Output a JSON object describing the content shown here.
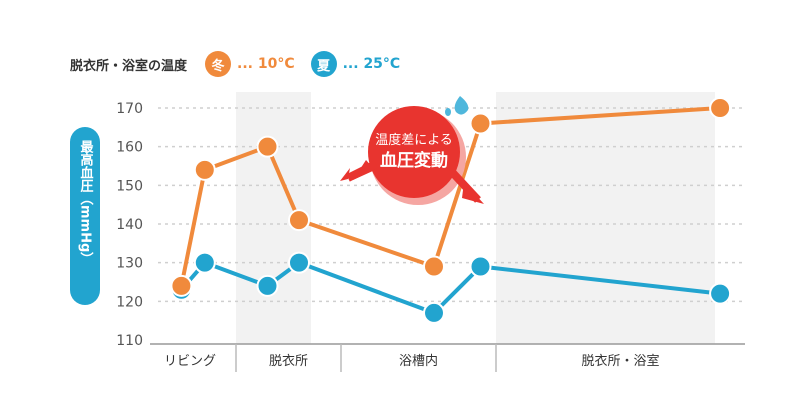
{
  "legend": {
    "title": "脱衣所・浴室の温度",
    "winter": {
      "badge": "冬",
      "label": "... 10°C",
      "color": "#f08a3c"
    },
    "summer": {
      "badge": "夏",
      "label": "... 25°C",
      "color": "#22a4cf"
    }
  },
  "callout": {
    "line1": "温度差による",
    "line2": "血圧変動",
    "color": "#e8342f"
  },
  "chart_data": {
    "type": "line",
    "ylabel": "最高血圧（mmHg）",
    "ylim": [
      110,
      170
    ],
    "yticks": [
      110,
      120,
      130,
      140,
      150,
      160,
      170
    ],
    "categories": [
      "リビング",
      "脱衣所",
      "浴槽内",
      "脱衣所・浴室"
    ],
    "series": [
      {
        "name": "冬",
        "color": "#f08a3c",
        "x": [
          0.3,
          0.6,
          1.3,
          1.6,
          2.6,
          2.9,
          3.9
        ],
        "y": [
          124,
          154,
          160,
          141,
          129,
          166,
          170
        ]
      },
      {
        "name": "夏",
        "color": "#22a4cf",
        "x": [
          0.3,
          0.6,
          1.3,
          1.6,
          2.6,
          2.9,
          3.9
        ],
        "y": [
          123,
          130,
          124,
          130,
          117,
          129,
          122
        ]
      }
    ],
    "grid": true
  }
}
